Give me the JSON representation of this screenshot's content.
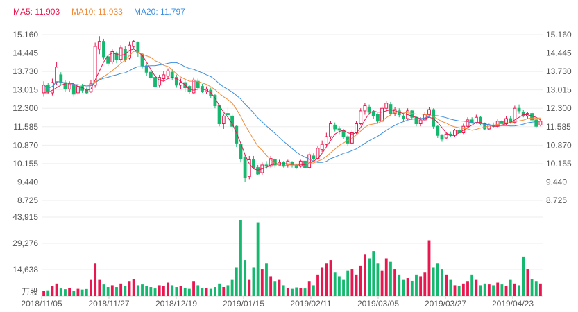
{
  "legend": {
    "ma5": "MA5: 11.903",
    "ma10": "MA10: 11.933",
    "ma20": "MA20: 11.797"
  },
  "colors": {
    "up": "#e8174f",
    "down": "#14b86e",
    "ma5": "#e8174f",
    "ma10": "#f08c3a",
    "ma20": "#3a8fe0",
    "grid": "#eeeeee",
    "axis_text": "#555555"
  },
  "chart_data": {
    "type": "candlestick",
    "price_axis": {
      "ticks": [
        "15.160",
        "14.445",
        "13.730",
        "13.015",
        "12.300",
        "11.585",
        "10.870",
        "10.155",
        "9.440",
        "8.725"
      ],
      "range": [
        8.725,
        15.16
      ]
    },
    "volume_axis": {
      "ticks": [
        "43,915",
        "29,276",
        "14,638"
      ],
      "unit": "万股",
      "range": [
        0,
        43915
      ]
    },
    "date_labels": [
      "2018/11/05",
      "2018/11/27",
      "2018/12/19",
      "2019/01/15",
      "2019/02/11",
      "2019/03/05",
      "2019/03/27",
      "2019/04/23"
    ],
    "candles": [
      [
        12.9,
        13.2,
        13.35,
        12.75
      ],
      [
        13.2,
        12.95,
        13.3,
        12.85
      ],
      [
        12.9,
        13.3,
        13.45,
        12.8
      ],
      [
        13.3,
        13.9,
        14.1,
        13.2
      ],
      [
        13.6,
        13.3,
        13.7,
        13.2
      ],
      [
        13.3,
        13.05,
        13.4,
        12.95
      ],
      [
        13.05,
        13.25,
        13.35,
        12.95
      ],
      [
        13.2,
        12.85,
        13.3,
        12.75
      ],
      [
        12.9,
        13.15,
        13.25,
        12.8
      ],
      [
        13.15,
        13.0,
        13.25,
        12.9
      ],
      [
        13.0,
        12.9,
        13.1,
        12.85
      ],
      [
        12.95,
        13.25,
        13.4,
        12.9
      ],
      [
        13.2,
        14.7,
        14.85,
        13.1
      ],
      [
        14.6,
        14.9,
        15.1,
        14.4
      ],
      [
        14.9,
        14.3,
        15.0,
        14.2
      ],
      [
        14.3,
        14.05,
        14.4,
        13.95
      ],
      [
        14.1,
        14.5,
        14.6,
        14.0
      ],
      [
        14.45,
        14.2,
        14.5,
        14.05
      ],
      [
        14.2,
        14.65,
        14.75,
        14.1
      ],
      [
        14.6,
        14.2,
        14.7,
        14.1
      ],
      [
        14.25,
        14.75,
        14.9,
        14.2
      ],
      [
        14.7,
        14.9,
        14.95,
        14.6
      ],
      [
        14.85,
        14.45,
        14.9,
        14.3
      ],
      [
        14.4,
        13.95,
        14.45,
        13.85
      ],
      [
        13.95,
        13.7,
        14.05,
        13.55
      ],
      [
        13.7,
        13.5,
        13.8,
        13.4
      ],
      [
        13.5,
        13.15,
        13.55,
        13.05
      ],
      [
        13.2,
        13.5,
        13.6,
        13.1
      ],
      [
        13.45,
        13.6,
        13.75,
        13.35
      ],
      [
        13.55,
        13.75,
        13.85,
        13.45
      ],
      [
        13.7,
        13.5,
        13.8,
        13.4
      ],
      [
        13.5,
        13.2,
        13.6,
        13.1
      ],
      [
        13.2,
        13.3,
        13.45,
        13.05
      ],
      [
        13.3,
        13.1,
        13.4,
        12.95
      ],
      [
        13.15,
        12.95,
        13.2,
        12.85
      ],
      [
        12.9,
        13.4,
        13.5,
        12.85
      ],
      [
        13.35,
        13.1,
        13.45,
        13.0
      ],
      [
        13.15,
        12.95,
        13.25,
        12.9
      ],
      [
        12.95,
        13.05,
        13.15,
        12.85
      ],
      [
        13.0,
        12.8,
        13.1,
        12.7
      ],
      [
        12.8,
        12.4,
        12.85,
        12.3
      ],
      [
        12.4,
        11.7,
        12.45,
        11.6
      ],
      [
        11.7,
        12.0,
        12.1,
        11.5
      ],
      [
        12.1,
        12.05,
        12.35,
        11.9
      ],
      [
        12.0,
        11.6,
        12.1,
        11.4
      ],
      [
        11.6,
        10.95,
        11.65,
        10.8
      ],
      [
        10.9,
        10.35,
        10.95,
        10.2
      ],
      [
        10.4,
        9.6,
        10.5,
        9.45
      ],
      [
        9.65,
        10.3,
        10.45,
        9.55
      ],
      [
        10.3,
        10.0,
        10.45,
        9.95
      ],
      [
        10.0,
        9.75,
        10.1,
        9.7
      ],
      [
        9.8,
        10.1,
        10.2,
        9.7
      ],
      [
        10.1,
        10.05,
        10.25,
        9.95
      ],
      [
        10.05,
        10.35,
        10.45,
        10.0
      ],
      [
        10.3,
        10.1,
        10.35,
        10.0
      ],
      [
        10.1,
        10.2,
        10.3,
        10.05
      ],
      [
        10.2,
        10.05,
        10.25,
        10.0
      ],
      [
        10.1,
        10.25,
        10.3,
        10.0
      ],
      [
        10.2,
        10.1,
        10.25,
        10.0
      ],
      [
        10.1,
        10.0,
        10.15,
        9.95
      ],
      [
        10.05,
        10.25,
        10.3,
        10.0
      ],
      [
        10.25,
        10.0,
        10.3,
        9.95
      ],
      [
        10.0,
        10.5,
        10.6,
        9.95
      ],
      [
        10.45,
        10.35,
        10.55,
        10.25
      ],
      [
        10.35,
        10.75,
        10.85,
        10.3
      ],
      [
        10.7,
        10.9,
        11.05,
        10.6
      ],
      [
        10.9,
        11.2,
        11.35,
        10.85
      ],
      [
        11.2,
        11.7,
        11.8,
        11.1
      ],
      [
        11.65,
        11.5,
        11.75,
        11.4
      ],
      [
        11.5,
        11.45,
        11.6,
        11.3
      ],
      [
        11.45,
        11.2,
        11.5,
        11.1
      ],
      [
        11.2,
        10.95,
        11.25,
        10.85
      ],
      [
        10.95,
        11.35,
        11.45,
        10.9
      ],
      [
        11.35,
        11.7,
        11.8,
        11.3
      ],
      [
        11.7,
        12.2,
        12.3,
        11.65
      ],
      [
        12.2,
        12.4,
        12.5,
        12.05
      ],
      [
        12.35,
        12.15,
        12.45,
        12.05
      ],
      [
        12.15,
        12.0,
        12.25,
        11.9
      ],
      [
        12.05,
        11.8,
        12.1,
        11.7
      ],
      [
        11.8,
        12.3,
        12.4,
        11.75
      ],
      [
        12.3,
        12.5,
        12.6,
        12.15
      ],
      [
        12.45,
        12.1,
        12.55,
        12.0
      ],
      [
        12.1,
        12.25,
        12.35,
        12.0
      ],
      [
        12.2,
        12.05,
        12.3,
        11.95
      ],
      [
        12.0,
        11.9,
        12.1,
        11.8
      ],
      [
        11.9,
        12.2,
        12.3,
        11.85
      ],
      [
        12.2,
        11.95,
        12.25,
        11.85
      ],
      [
        11.95,
        11.7,
        12.0,
        11.6
      ],
      [
        11.7,
        11.85,
        11.95,
        11.6
      ],
      [
        11.85,
        12.05,
        12.15,
        11.8
      ],
      [
        12.05,
        12.25,
        12.35,
        12.0
      ],
      [
        12.25,
        11.6,
        12.3,
        11.5
      ],
      [
        11.6,
        11.25,
        11.65,
        11.15
      ],
      [
        11.25,
        11.1,
        11.3,
        11.0
      ],
      [
        11.15,
        11.3,
        11.35,
        11.1
      ],
      [
        11.3,
        11.25,
        11.4,
        11.2
      ],
      [
        11.25,
        11.45,
        11.5,
        11.2
      ],
      [
        11.45,
        11.35,
        11.55,
        11.3
      ],
      [
        11.35,
        11.6,
        11.7,
        11.3
      ],
      [
        11.6,
        11.85,
        11.95,
        11.55
      ],
      [
        11.85,
        11.75,
        11.95,
        11.7
      ],
      [
        11.75,
        11.95,
        12.05,
        11.7
      ],
      [
        11.95,
        11.7,
        12.0,
        11.65
      ],
      [
        11.7,
        11.5,
        11.75,
        11.45
      ],
      [
        11.5,
        11.65,
        11.7,
        11.45
      ],
      [
        11.65,
        11.6,
        11.75,
        11.55
      ],
      [
        11.6,
        11.8,
        11.9,
        11.55
      ],
      [
        11.8,
        11.7,
        11.85,
        11.6
      ],
      [
        11.7,
        11.9,
        12.0,
        11.65
      ],
      [
        11.9,
        11.75,
        12.0,
        11.7
      ],
      [
        11.75,
        12.3,
        12.4,
        11.7
      ],
      [
        12.3,
        12.2,
        12.45,
        12.1
      ],
      [
        12.15,
        12.0,
        12.25,
        11.95
      ],
      [
        12.0,
        12.1,
        12.15,
        11.9
      ],
      [
        12.1,
        11.85,
        12.2,
        11.8
      ],
      [
        11.85,
        11.6,
        11.9,
        11.55
      ],
      [
        11.65,
        11.8,
        11.85,
        11.6
      ]
    ],
    "volumes": [
      3000,
      3200,
      5500,
      7000,
      4200,
      3800,
      4500,
      3000,
      4000,
      3600,
      3900,
      9000,
      18000,
      9000,
      6500,
      5000,
      6000,
      5000,
      7000,
      5500,
      8000,
      9500,
      6000,
      6500,
      5500,
      5000,
      4200,
      6000,
      5500,
      7500,
      6000,
      5000,
      5500,
      4500,
      4000,
      8000,
      6000,
      4500,
      4300,
      4000,
      5000,
      7000,
      5000,
      6000,
      9000,
      16000,
      42000,
      20000,
      9000,
      16000,
      41000,
      15000,
      18000,
      11000,
      8000,
      9000,
      6000,
      4500,
      4000,
      4800,
      4500,
      4200,
      8000,
      6000,
      12000,
      16000,
      18000,
      20000,
      13000,
      11000,
      9000,
      14000,
      15000,
      12000,
      17000,
      23000,
      21000,
      25000,
      18000,
      14000,
      21000,
      19000,
      15000,
      12000,
      9000,
      10000,
      8500,
      12000,
      11000,
      13000,
      31000,
      16000,
      18000,
      15000,
      12000,
      9000,
      6000,
      5500,
      7000,
      8000,
      12000,
      9000,
      6000,
      7000,
      6500,
      6000,
      7500,
      6500,
      5500,
      9000,
      7000,
      6000,
      22000,
      15000,
      9500,
      8000,
      7000,
      6500,
      5000
    ],
    "ma5": [
      12.9,
      12.9,
      13.0,
      13.1,
      13.2,
      13.25,
      13.3,
      13.25,
      13.15,
      13.1,
      13.0,
      13.05,
      13.4,
      13.75,
      14.1,
      14.35,
      14.45,
      14.4,
      14.35,
      14.4,
      14.55,
      14.6,
      14.5,
      14.35,
      14.1,
      13.8,
      13.55,
      13.4,
      13.35,
      13.45,
      13.5,
      13.45,
      13.35,
      13.2,
      13.05,
      13.0,
      13.05,
      13.05,
      13.0,
      12.9,
      12.7,
      12.4,
      12.15,
      11.95,
      11.7,
      11.35,
      10.95,
      10.5,
      10.15,
      9.95,
      9.9,
      9.95,
      10.0,
      10.1,
      10.15,
      10.15,
      10.15,
      10.15,
      10.1,
      10.1,
      10.1,
      10.12,
      10.18,
      10.25,
      10.35,
      10.55,
      10.8,
      11.05,
      11.3,
      11.4,
      11.45,
      11.35,
      11.3,
      11.35,
      11.55,
      11.85,
      12.1,
      12.2,
      12.15,
      12.15,
      12.2,
      12.25,
      12.2,
      12.15,
      12.1,
      12.05,
      12.0,
      11.95,
      11.9,
      11.9,
      11.95,
      11.9,
      11.75,
      11.55,
      11.35,
      11.25,
      11.25,
      11.35,
      11.45,
      11.55,
      11.65,
      11.75,
      11.75,
      11.7,
      11.65,
      11.6,
      11.6,
      11.65,
      11.7,
      11.75,
      11.85,
      11.95,
      12.05,
      12.05,
      12.0,
      11.95,
      11.85
    ]
  }
}
